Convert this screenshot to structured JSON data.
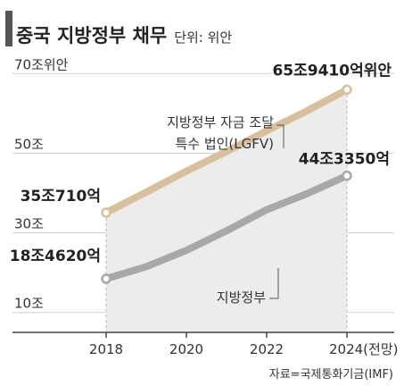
{
  "header": {
    "title": "중국 지방정부 채무",
    "unit": "단위: 위안"
  },
  "source": "자료=국제통화기금(IMF)",
  "chart_data": {
    "type": "line",
    "x": [
      2018,
      2019,
      2020,
      2021,
      2022,
      2023,
      2024
    ],
    "x_ticks": [
      "2018",
      "2020",
      "2022",
      "2024(전망)"
    ],
    "y_ticks": [
      "70조위안",
      "50조",
      "30조",
      "10조"
    ],
    "y_tick_values": [
      70,
      50,
      30,
      10
    ],
    "ylim": [
      5,
      75
    ],
    "grid": true,
    "series": [
      {
        "name": "지방정부 자금 조달 특수 법인(LGFV)",
        "label_lines": [
          "지방정부 자금 조달",
          "특수 법인(LGFV)"
        ],
        "color": "#d8bf9e",
        "values": [
          35.07,
          40.2,
          45.5,
          50.4,
          55.6,
          60.6,
          65.94
        ],
        "start_label": "35조710억",
        "end_label": "65조9410억위안"
      },
      {
        "name": "지방정부",
        "label_lines": [
          "지방정부"
        ],
        "color": "#a8a8a8",
        "values": [
          18.46,
          21.5,
          25.6,
          30.5,
          35.8,
          39.8,
          44.34
        ],
        "start_label": "18조4620억",
        "end_label": "44조3350억"
      }
    ]
  }
}
